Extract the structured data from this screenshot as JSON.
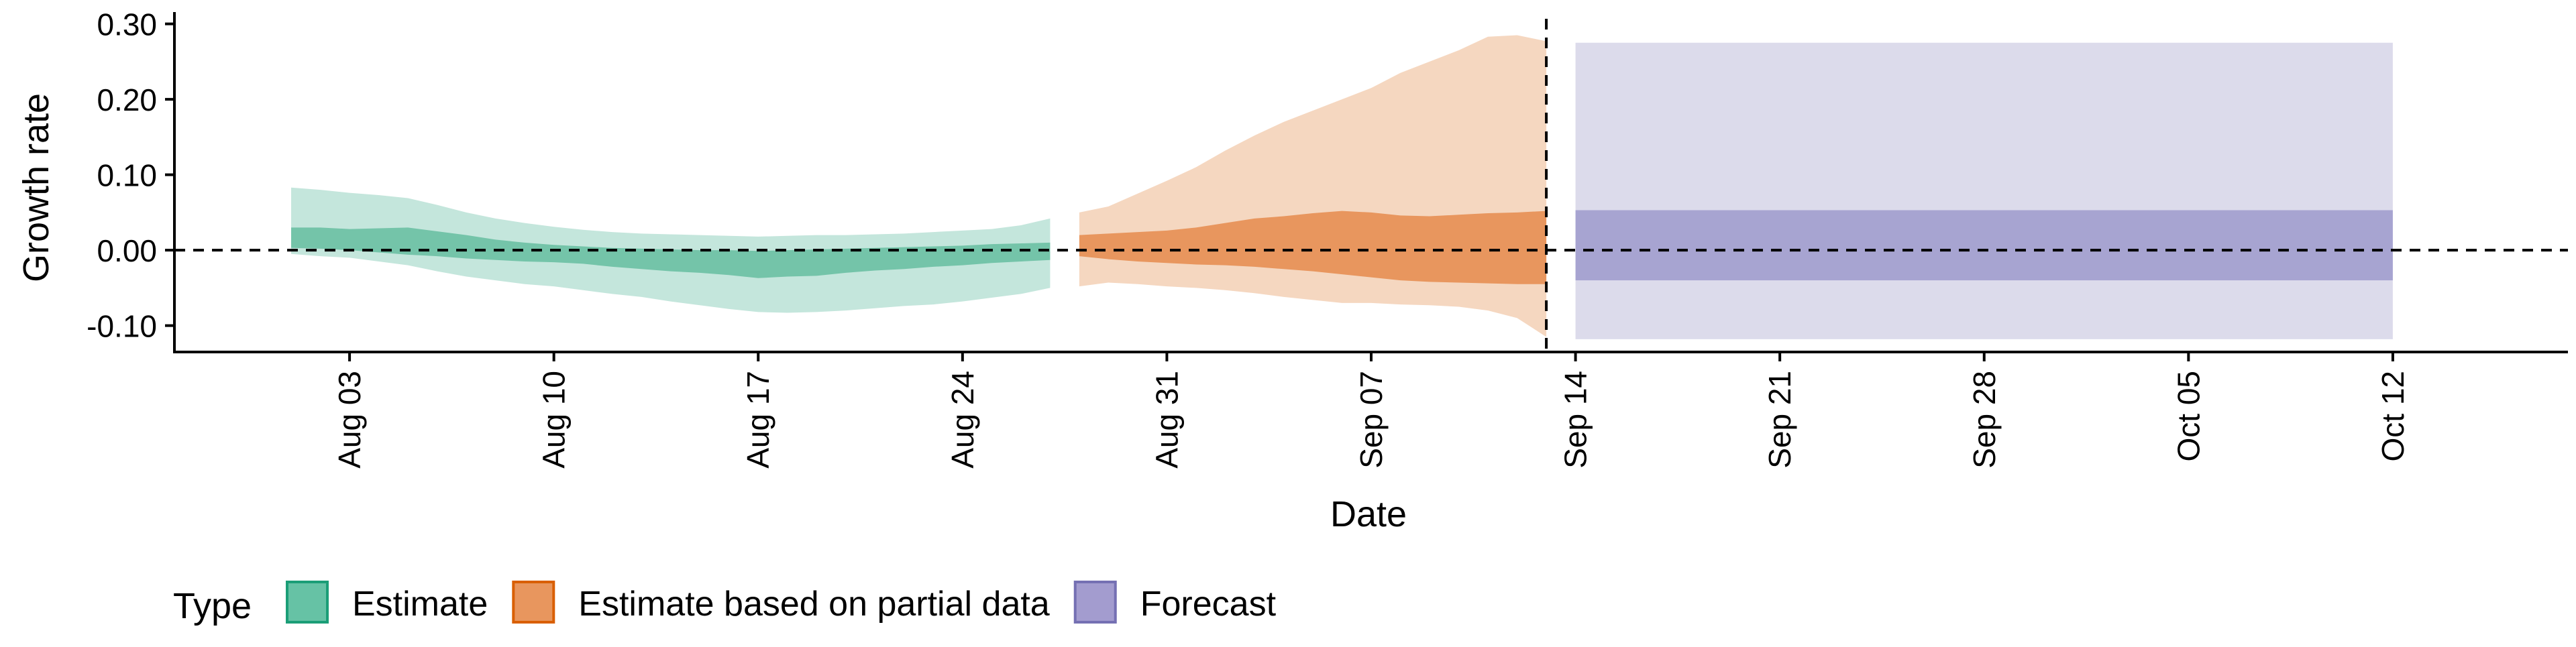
{
  "chart_data": {
    "type": "area",
    "xlabel": "Date",
    "ylabel": "Growth rate",
    "x_axis": {
      "type": "date",
      "range": [
        "2020-07-28",
        "2020-10-18"
      ],
      "ticks": [
        {
          "date": "2020-08-03",
          "label": "Aug 03"
        },
        {
          "date": "2020-08-10",
          "label": "Aug 10"
        },
        {
          "date": "2020-08-17",
          "label": "Aug 17"
        },
        {
          "date": "2020-08-24",
          "label": "Aug 24"
        },
        {
          "date": "2020-08-31",
          "label": "Aug 31"
        },
        {
          "date": "2020-09-07",
          "label": "Sep 07"
        },
        {
          "date": "2020-09-14",
          "label": "Sep 14"
        },
        {
          "date": "2020-09-21",
          "label": "Sep 21"
        },
        {
          "date": "2020-09-28",
          "label": "Sep 28"
        },
        {
          "date": "2020-10-05",
          "label": "Oct 05"
        },
        {
          "date": "2020-10-12",
          "label": "Oct 12"
        }
      ]
    },
    "y_axis": {
      "range": [
        -0.135,
        0.305
      ],
      "ticks": [
        {
          "value": -0.1,
          "label": "-0.10"
        },
        {
          "value": 0.0,
          "label": "0.00"
        },
        {
          "value": 0.1,
          "label": "0.10"
        },
        {
          "value": 0.2,
          "label": "0.20"
        },
        {
          "value": 0.3,
          "label": "0.30"
        }
      ]
    },
    "grid": false,
    "reference_lines": {
      "horizontal_y": 0.0,
      "vertical_date": "2020-09-13"
    },
    "legend": {
      "title": "Type",
      "position": "bottom-left",
      "entries": [
        {
          "label": "Estimate",
          "color": "#66c2a5",
          "border": "#1b9e77"
        },
        {
          "label": "Estimate based on partial data",
          "color": "#e8965e",
          "border": "#d95f02"
        },
        {
          "label": "Forecast",
          "color": "#a39ccf",
          "border": "#7570b3"
        }
      ]
    },
    "series": [
      {
        "name": "Estimate",
        "outer_color": "#c4e6dc",
        "inner_color": "#74c4a9",
        "x": [
          "2020-08-01",
          "2020-08-02",
          "2020-08-03",
          "2020-08-04",
          "2020-08-05",
          "2020-08-06",
          "2020-08-07",
          "2020-08-08",
          "2020-08-09",
          "2020-08-10",
          "2020-08-11",
          "2020-08-12",
          "2020-08-13",
          "2020-08-14",
          "2020-08-15",
          "2020-08-16",
          "2020-08-17",
          "2020-08-18",
          "2020-08-19",
          "2020-08-20",
          "2020-08-21",
          "2020-08-22",
          "2020-08-23",
          "2020-08-24",
          "2020-08-25",
          "2020-08-26",
          "2020-08-27"
        ],
        "outer_upper": [
          0.083,
          0.08,
          0.076,
          0.073,
          0.069,
          0.06,
          0.05,
          0.042,
          0.036,
          0.031,
          0.027,
          0.024,
          0.022,
          0.021,
          0.02,
          0.019,
          0.018,
          0.019,
          0.02,
          0.02,
          0.021,
          0.022,
          0.024,
          0.026,
          0.028,
          0.033,
          0.042
        ],
        "inner_upper": [
          0.03,
          0.03,
          0.028,
          0.029,
          0.03,
          0.025,
          0.02,
          0.014,
          0.01,
          0.007,
          0.005,
          0.003,
          0.002,
          0.001,
          0.0,
          0.0,
          -0.001,
          0.0,
          0.001,
          0.002,
          0.003,
          0.004,
          0.005,
          0.006,
          0.008,
          0.009,
          0.01
        ],
        "inner_lower": [
          0.003,
          0.002,
          0.0,
          -0.003,
          -0.006,
          -0.008,
          -0.011,
          -0.013,
          -0.015,
          -0.016,
          -0.018,
          -0.022,
          -0.025,
          -0.028,
          -0.03,
          -0.033,
          -0.037,
          -0.035,
          -0.034,
          -0.03,
          -0.027,
          -0.025,
          -0.022,
          -0.02,
          -0.017,
          -0.015,
          -0.013
        ],
        "outer_lower": [
          -0.005,
          -0.008,
          -0.01,
          -0.015,
          -0.02,
          -0.028,
          -0.035,
          -0.04,
          -0.045,
          -0.048,
          -0.053,
          -0.058,
          -0.062,
          -0.068,
          -0.073,
          -0.078,
          -0.082,
          -0.083,
          -0.082,
          -0.08,
          -0.077,
          -0.074,
          -0.072,
          -0.068,
          -0.063,
          -0.058,
          -0.05
        ]
      },
      {
        "name": "Estimate based on partial data",
        "outer_color": "#f5d7c0",
        "inner_color": "#e8965e",
        "x": [
          "2020-08-28",
          "2020-08-29",
          "2020-08-30",
          "2020-08-31",
          "2020-09-01",
          "2020-09-02",
          "2020-09-03",
          "2020-09-04",
          "2020-09-05",
          "2020-09-06",
          "2020-09-07",
          "2020-09-08",
          "2020-09-09",
          "2020-09-10",
          "2020-09-11",
          "2020-09-12",
          "2020-09-13"
        ],
        "outer_upper": [
          0.05,
          0.058,
          0.075,
          0.092,
          0.11,
          0.132,
          0.152,
          0.17,
          0.185,
          0.2,
          0.215,
          0.235,
          0.25,
          0.265,
          0.283,
          0.285,
          0.277
        ],
        "inner_upper": [
          0.02,
          0.022,
          0.024,
          0.026,
          0.03,
          0.036,
          0.042,
          0.045,
          0.049,
          0.052,
          0.05,
          0.046,
          0.045,
          0.047,
          0.049,
          0.05,
          0.052
        ],
        "inner_lower": [
          -0.008,
          -0.012,
          -0.015,
          -0.017,
          -0.019,
          -0.02,
          -0.022,
          -0.025,
          -0.028,
          -0.032,
          -0.036,
          -0.04,
          -0.042,
          -0.043,
          -0.044,
          -0.045,
          -0.045
        ],
        "outer_lower": [
          -0.048,
          -0.043,
          -0.045,
          -0.048,
          -0.05,
          -0.053,
          -0.057,
          -0.062,
          -0.066,
          -0.07,
          -0.07,
          -0.072,
          -0.073,
          -0.075,
          -0.08,
          -0.09,
          -0.115
        ]
      },
      {
        "name": "Forecast",
        "outer_color": "#dcdbeb",
        "inner_color": "#a7a4d1",
        "x": [
          "2020-09-14",
          "2020-10-12"
        ],
        "outer_upper": [
          0.275,
          0.275
        ],
        "inner_upper": [
          0.053,
          0.053
        ],
        "inner_lower": [
          -0.04,
          -0.04
        ],
        "outer_lower": [
          -0.118,
          -0.118
        ]
      }
    ]
  }
}
